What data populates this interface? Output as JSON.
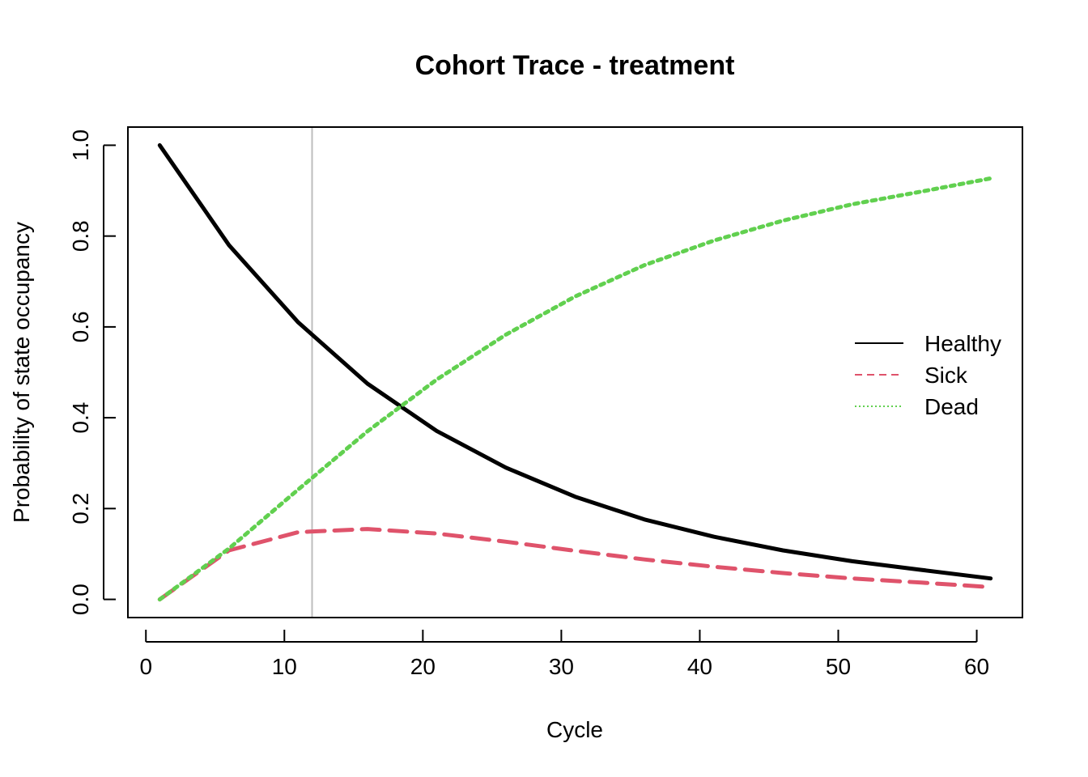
{
  "chart_data": {
    "type": "line",
    "title": "Cohort Trace - treatment",
    "xlabel": "Cycle",
    "ylabel": "Probability of state occupancy",
    "xlim": [
      -1.3,
      63.3
    ],
    "ylim": [
      -0.04,
      1.04
    ],
    "x_ticks": [
      0,
      10,
      20,
      30,
      40,
      50,
      60
    ],
    "y_ticks": [
      0.0,
      0.2,
      0.4,
      0.6,
      0.8,
      1.0
    ],
    "x_tick_labels": [
      "0",
      "10",
      "20",
      "30",
      "40",
      "50",
      "60"
    ],
    "y_tick_labels": [
      "0.0",
      "0.2",
      "0.4",
      "0.6",
      "0.8",
      "1.0"
    ],
    "vline_x": 12,
    "vline_color": "#bebebe",
    "legend_position": "right",
    "x": [
      1,
      6,
      11,
      16,
      21,
      26,
      31,
      36,
      41,
      46,
      51,
      56,
      61
    ],
    "series": [
      {
        "name": "Healthy",
        "color": "#000000",
        "linestyle": "solid",
        "values": [
          1.0,
          0.78,
          0.61,
          0.475,
          0.371,
          0.29,
          0.226,
          0.176,
          0.138,
          0.108,
          0.084,
          0.065,
          0.046
        ]
      },
      {
        "name": "Sick",
        "color": "#df536b",
        "linestyle": "dashed",
        "values": [
          0.0,
          0.108,
          0.148,
          0.155,
          0.145,
          0.127,
          0.107,
          0.088,
          0.072,
          0.058,
          0.046,
          0.037,
          0.027
        ]
      },
      {
        "name": "Dead",
        "color": "#61d04f",
        "linestyle": "dotted",
        "values": [
          0.0,
          0.112,
          0.242,
          0.37,
          0.484,
          0.583,
          0.667,
          0.736,
          0.79,
          0.834,
          0.87,
          0.898,
          0.927
        ]
      }
    ]
  }
}
